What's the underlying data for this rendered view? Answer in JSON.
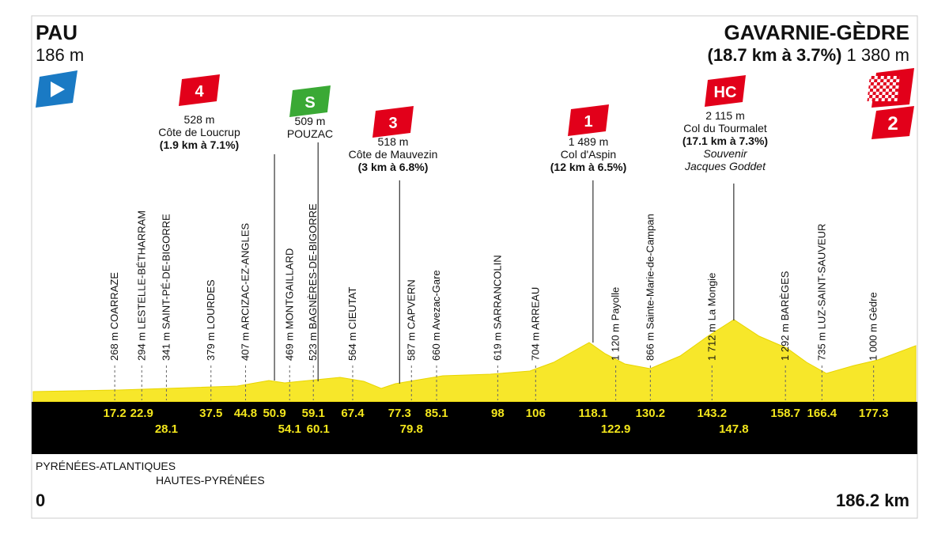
{
  "start": {
    "name": "PAU",
    "altitude": "186 m"
  },
  "finish": {
    "name": "GAVARNIE-GÈDRE",
    "climb": "(18.7 km à 3.7%)",
    "altitude": "1 380 m",
    "badge": "2"
  },
  "towns": [
    {
      "km": 17.2,
      "label": "268 m COARRAZE"
    },
    {
      "km": 22.9,
      "label": "294 m LESTELLE-BÉTHARRAM"
    },
    {
      "km": 28.1,
      "label": "341 m SAINT-PÉ-DE-BIGORRE"
    },
    {
      "km": 37.5,
      "label": "379 m LOURDES"
    },
    {
      "km": 44.8,
      "label": "407 m ARCIZAC-EZ-ANGLES"
    },
    {
      "km": 54.1,
      "label": "469 m MONTGAILLARD"
    },
    {
      "km": 59.1,
      "label": "523 m BAGNÈRES-DE-BIGORRE"
    },
    {
      "km": 67.4,
      "label": "564 m CIEUTAT"
    },
    {
      "km": 79.8,
      "label": "587 m CAPVERN"
    },
    {
      "km": 85.1,
      "label": "660 m Avezac-Gare"
    },
    {
      "km": 98,
      "label": "619 m SARRANCOLIN"
    },
    {
      "km": 106,
      "label": "704 m ARREAU"
    },
    {
      "km": 122.9,
      "label": "1 120 m Payolle"
    },
    {
      "km": 130.2,
      "label": "866 m Sainte-Marie-de-Campan"
    },
    {
      "km": 143.2,
      "label": "1 712 m La Mongie"
    },
    {
      "km": 158.7,
      "label": "1 292 m BARÈGES"
    },
    {
      "km": 166.4,
      "label": "735 m LUZ-SAINT-SAUVEUR"
    },
    {
      "km": 177.3,
      "label": "1 000 m Gèdre"
    }
  ],
  "climbs": [
    {
      "km": 50.9,
      "badge": "4",
      "color": "#e2001a",
      "altitude": "528 m",
      "name": "Côte de Loucrup",
      "detail": "(1.9 km à 7.1%)"
    },
    {
      "km": 60.1,
      "badge": "S",
      "color": "#3aa935",
      "altitude": "509 m",
      "name": "POUZAC"
    },
    {
      "km": 77.3,
      "badge": "3",
      "color": "#e2001a",
      "altitude": "518 m",
      "name": "Côte de Mauvezin",
      "detail": "(3 km à 6.8%)"
    },
    {
      "km": 118.1,
      "badge": "1",
      "color": "#e2001a",
      "altitude": "1 489 m",
      "name": "Col d'Aspin",
      "detail": "(12 km à 6.5%)"
    },
    {
      "km": 147.8,
      "badge": "HC",
      "color": "#e2001a",
      "altitude": "2 115 m",
      "name": "Col du Tourmalet",
      "detail": "(17.1 km à 7.3%)",
      "note": [
        "Souvenir",
        "Jacques Goddet"
      ]
    }
  ],
  "departments": [
    "PYRÉNÉES-ATLANTIQUES",
    "HAUTES-PYRÉNÉES"
  ],
  "distance_start": 0,
  "distance_end": {
    "value": 186.2,
    "label": "186.2 km"
  }
}
